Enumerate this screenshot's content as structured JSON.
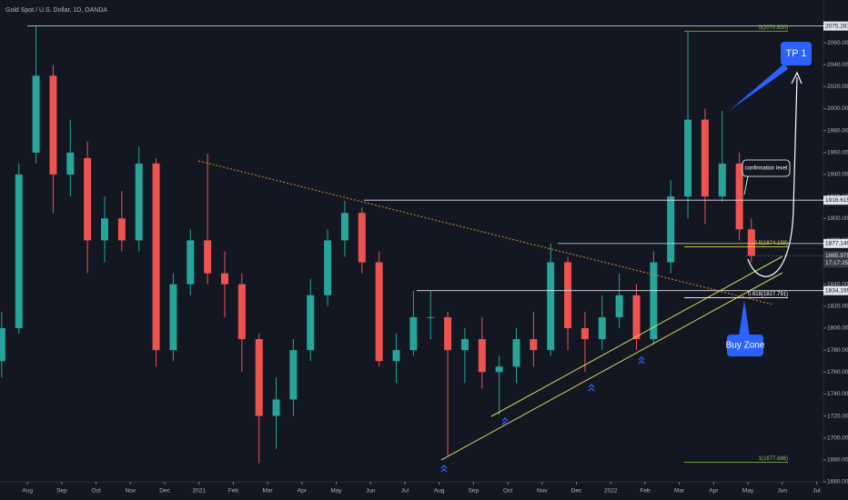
{
  "chart_data": {
    "type": "candlestick",
    "title": "Gold Spot / U.S. Dollar, 1D, OANDA",
    "x": [
      -0.75,
      -0.25,
      0.25,
      0.75,
      1.25,
      1.75,
      2.25,
      2.75,
      3.25,
      3.75,
      4.25,
      4.75,
      5.25,
      5.75,
      6.25,
      6.75,
      7.25,
      7.75,
      8.25,
      8.75,
      9.25,
      9.75,
      10.25,
      10.75,
      11.25,
      11.75,
      12.25,
      12.75,
      13.25,
      13.75,
      14.25,
      14.75,
      15.25,
      15.75,
      16.25,
      16.75,
      17.25,
      17.75,
      18.25,
      18.75,
      19.25,
      19.75,
      20.25,
      20.75,
      21.1
    ],
    "open": [
      1770,
      1800,
      1960,
      2030,
      1940,
      1955,
      1880,
      1900,
      1880,
      1950,
      1780,
      1840,
      1880,
      1850,
      1840,
      1790,
      1720,
      1735,
      1780,
      1830,
      1880,
      1905,
      1860,
      1770,
      1780,
      1810,
      1810,
      1780,
      1790,
      1760,
      1765,
      1790,
      1780,
      1860,
      1800,
      1790,
      1810,
      1830,
      1790,
      1860,
      1920,
      1990,
      1920,
      1950,
      1890
    ],
    "high": [
      1815,
      1950,
      2075,
      2040,
      1990,
      1970,
      1920,
      1925,
      1965,
      1955,
      1850,
      1890,
      1959,
      1870,
      1850,
      1795,
      1755,
      1790,
      1845,
      1890,
      1916,
      1910,
      1870,
      1795,
      1834,
      1834,
      1815,
      1800,
      1810,
      1775,
      1800,
      1815,
      1877,
      1865,
      1815,
      1830,
      1850,
      1840,
      1870,
      1935,
      2070,
      2000,
      1998,
      1960,
      1900
    ],
    "low": [
      1755,
      1795,
      1950,
      1905,
      1920,
      1850,
      1860,
      1870,
      1870,
      1765,
      1770,
      1830,
      1840,
      1810,
      1760,
      1677,
      1690,
      1720,
      1770,
      1820,
      1865,
      1850,
      1765,
      1750,
      1775,
      1790,
      1684,
      1750,
      1745,
      1721,
      1750,
      1765,
      1775,
      1780,
      1760,
      1780,
      1800,
      1780,
      1785,
      1850,
      1900,
      1895,
      1915,
      1880,
      1860
    ],
    "close": [
      1800,
      1940,
      2030,
      1940,
      1960,
      1880,
      1900,
      1880,
      1950,
      1780,
      1840,
      1880,
      1850,
      1840,
      1790,
      1720,
      1735,
      1780,
      1830,
      1880,
      1905,
      1860,
      1770,
      1780,
      1810,
      1810,
      1780,
      1790,
      1760,
      1765,
      1790,
      1780,
      1860,
      1800,
      1790,
      1810,
      1830,
      1790,
      1860,
      1920,
      1990,
      1920,
      1950,
      1890,
      1866
    ],
    "up_color": "#26a69a",
    "down_color": "#ef5350",
    "xlim": [
      -0.8,
      23.2
    ],
    "xticks": [
      {
        "value": 0,
        "label": "Aug"
      },
      {
        "value": 1,
        "label": "Sep"
      },
      {
        "value": 2,
        "label": "Oct"
      },
      {
        "value": 3,
        "label": "Nov"
      },
      {
        "value": 4,
        "label": "Dec"
      },
      {
        "value": 5,
        "label": "2021"
      },
      {
        "value": 6,
        "label": "Feb"
      },
      {
        "value": 7,
        "label": "Mar"
      },
      {
        "value": 8,
        "label": "Apr"
      },
      {
        "value": 9,
        "label": "May"
      },
      {
        "value": 10,
        "label": "Jun"
      },
      {
        "value": 11,
        "label": "Jul"
      },
      {
        "value": 12,
        "label": "Aug"
      },
      {
        "value": 13,
        "label": "Sep"
      },
      {
        "value": 14,
        "label": "Oct"
      },
      {
        "value": 15,
        "label": "Nov"
      },
      {
        "value": 16,
        "label": "Dec"
      },
      {
        "value": 17,
        "label": "2022"
      },
      {
        "value": 18,
        "label": "Feb"
      },
      {
        "value": 19,
        "label": "Mar"
      },
      {
        "value": 20,
        "label": "Apr"
      },
      {
        "value": 21,
        "label": "May"
      },
      {
        "value": 22,
        "label": "Jun"
      },
      {
        "value": 23,
        "label": "Jul"
      }
    ],
    "ylim": [
      1660,
      2099
    ],
    "yticks": [
      {
        "value": 1660,
        "label": "1660.000"
      },
      {
        "value": 1680,
        "label": "1680.000"
      },
      {
        "value": 1700,
        "label": "1700.000"
      },
      {
        "value": 1720,
        "label": "1720.000"
      },
      {
        "value": 1740,
        "label": "1740.000"
      },
      {
        "value": 1760,
        "label": "1760.000"
      },
      {
        "value": 1780,
        "label": "1780.000"
      },
      {
        "value": 1800,
        "label": "1800.000"
      },
      {
        "value": 1820,
        "label": "1820.000"
      },
      {
        "value": 1840,
        "label": "1840.000"
      },
      {
        "value": 1860,
        "label": "1860.000"
      },
      {
        "value": 1880,
        "label": "1880.000"
      },
      {
        "value": 1900,
        "label": "1900.000"
      },
      {
        "value": 1920,
        "label": "1920.000"
      },
      {
        "value": 1940,
        "label": "1940.000"
      },
      {
        "value": 1960,
        "label": "1960.000"
      },
      {
        "value": 1980,
        "label": "1980.000"
      },
      {
        "value": 2000,
        "label": "2000.000"
      },
      {
        "value": 2020,
        "label": "2020.000"
      },
      {
        "value": 2040,
        "label": "2040.000"
      },
      {
        "value": 2060,
        "label": "2060.000"
      }
    ],
    "levels": [
      {
        "value": 2075.281,
        "label": "2075.281"
      },
      {
        "value": 1916.615,
        "label": "1916.615"
      },
      {
        "value": 1877.14,
        "label": "1877.140"
      },
      {
        "value": 1834.195,
        "label": "1834.195"
      }
    ],
    "fib_levels": [
      {
        "value": 2070.63,
        "label": "0(2070.630)",
        "color": "#8bc34a"
      },
      {
        "value": 1874.158,
        "label": "0.5(1874.158)",
        "color": "#e6d84a"
      },
      {
        "value": 1827.791,
        "label": "0.618(1827.791)",
        "color": "#ffffff"
      },
      {
        "value": 1677.686,
        "label": "1(1677.686)",
        "color": "#8bc34a"
      }
    ],
    "last_price": {
      "value": 1865.975,
      "label": "1865.975"
    },
    "countdown": "17:17:25",
    "annotations": {
      "confirmation": "confirmation level",
      "target": "TP 1",
      "buy_zone": "Buy Zone"
    }
  }
}
